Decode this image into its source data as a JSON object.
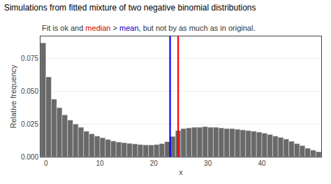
{
  "chart_data": {
    "type": "histogram",
    "title": "Simulations from fitted mixture of two negative binomial distributions",
    "subtitle": [
      {
        "text": "Fit is ok and ",
        "color": "#333333"
      },
      {
        "text": "median",
        "color": "#cc0000"
      },
      {
        "text": " > ",
        "color": "#333333"
      },
      {
        "text": "mean",
        "color": "#0000cc"
      },
      {
        "text": ", but not by as much as in original.",
        "color": "#333333"
      }
    ],
    "xlabel": "x",
    "ylabel": "Relative frequency",
    "bins": [
      -1,
      0,
      1,
      2,
      3,
      4,
      5,
      6,
      7,
      8,
      9,
      10,
      11,
      12,
      13,
      14,
      15,
      16,
      17,
      18,
      19,
      20,
      21,
      22,
      23,
      24,
      25,
      26,
      27,
      28,
      29,
      30,
      31,
      32,
      33,
      34,
      35,
      36,
      37,
      38,
      39,
      40,
      41,
      42,
      43,
      44,
      45,
      46,
      47,
      48,
      49,
      50,
      51
    ],
    "values": [
      0.087,
      0.061,
      0.044,
      0.0375,
      0.032,
      0.028,
      0.025,
      0.0225,
      0.0195,
      0.0175,
      0.0158,
      0.0145,
      0.0132,
      0.012,
      0.0112,
      0.0107,
      0.0102,
      0.0098,
      0.0093,
      0.009,
      0.009,
      0.0093,
      0.01,
      0.0115,
      0.0155,
      0.02,
      0.0215,
      0.022,
      0.0225,
      0.0225,
      0.023,
      0.0225,
      0.0225,
      0.022,
      0.0215,
      0.0215,
      0.021,
      0.0205,
      0.02,
      0.0195,
      0.0188,
      0.018,
      0.017,
      0.0158,
      0.0148,
      0.0135,
      0.0118,
      0.01,
      0.0085,
      0.0065,
      0.005,
      0.0038
    ],
    "color": "#696969",
    "vlines": [
      {
        "x": 23.0,
        "color": "blue"
      },
      {
        "x": 24.5,
        "color": "red"
      }
    ],
    "xlim": [
      -1,
      51
    ],
    "xticks": [
      0,
      10,
      20,
      30,
      40
    ],
    "ylim": [
      0,
      0.092
    ],
    "yticks": [
      {
        "value": 0,
        "label": "0.000"
      },
      0.025,
      {
        "value": 0.05,
        "label": "0.050"
      },
      0.075
    ],
    "grid": "y"
  }
}
